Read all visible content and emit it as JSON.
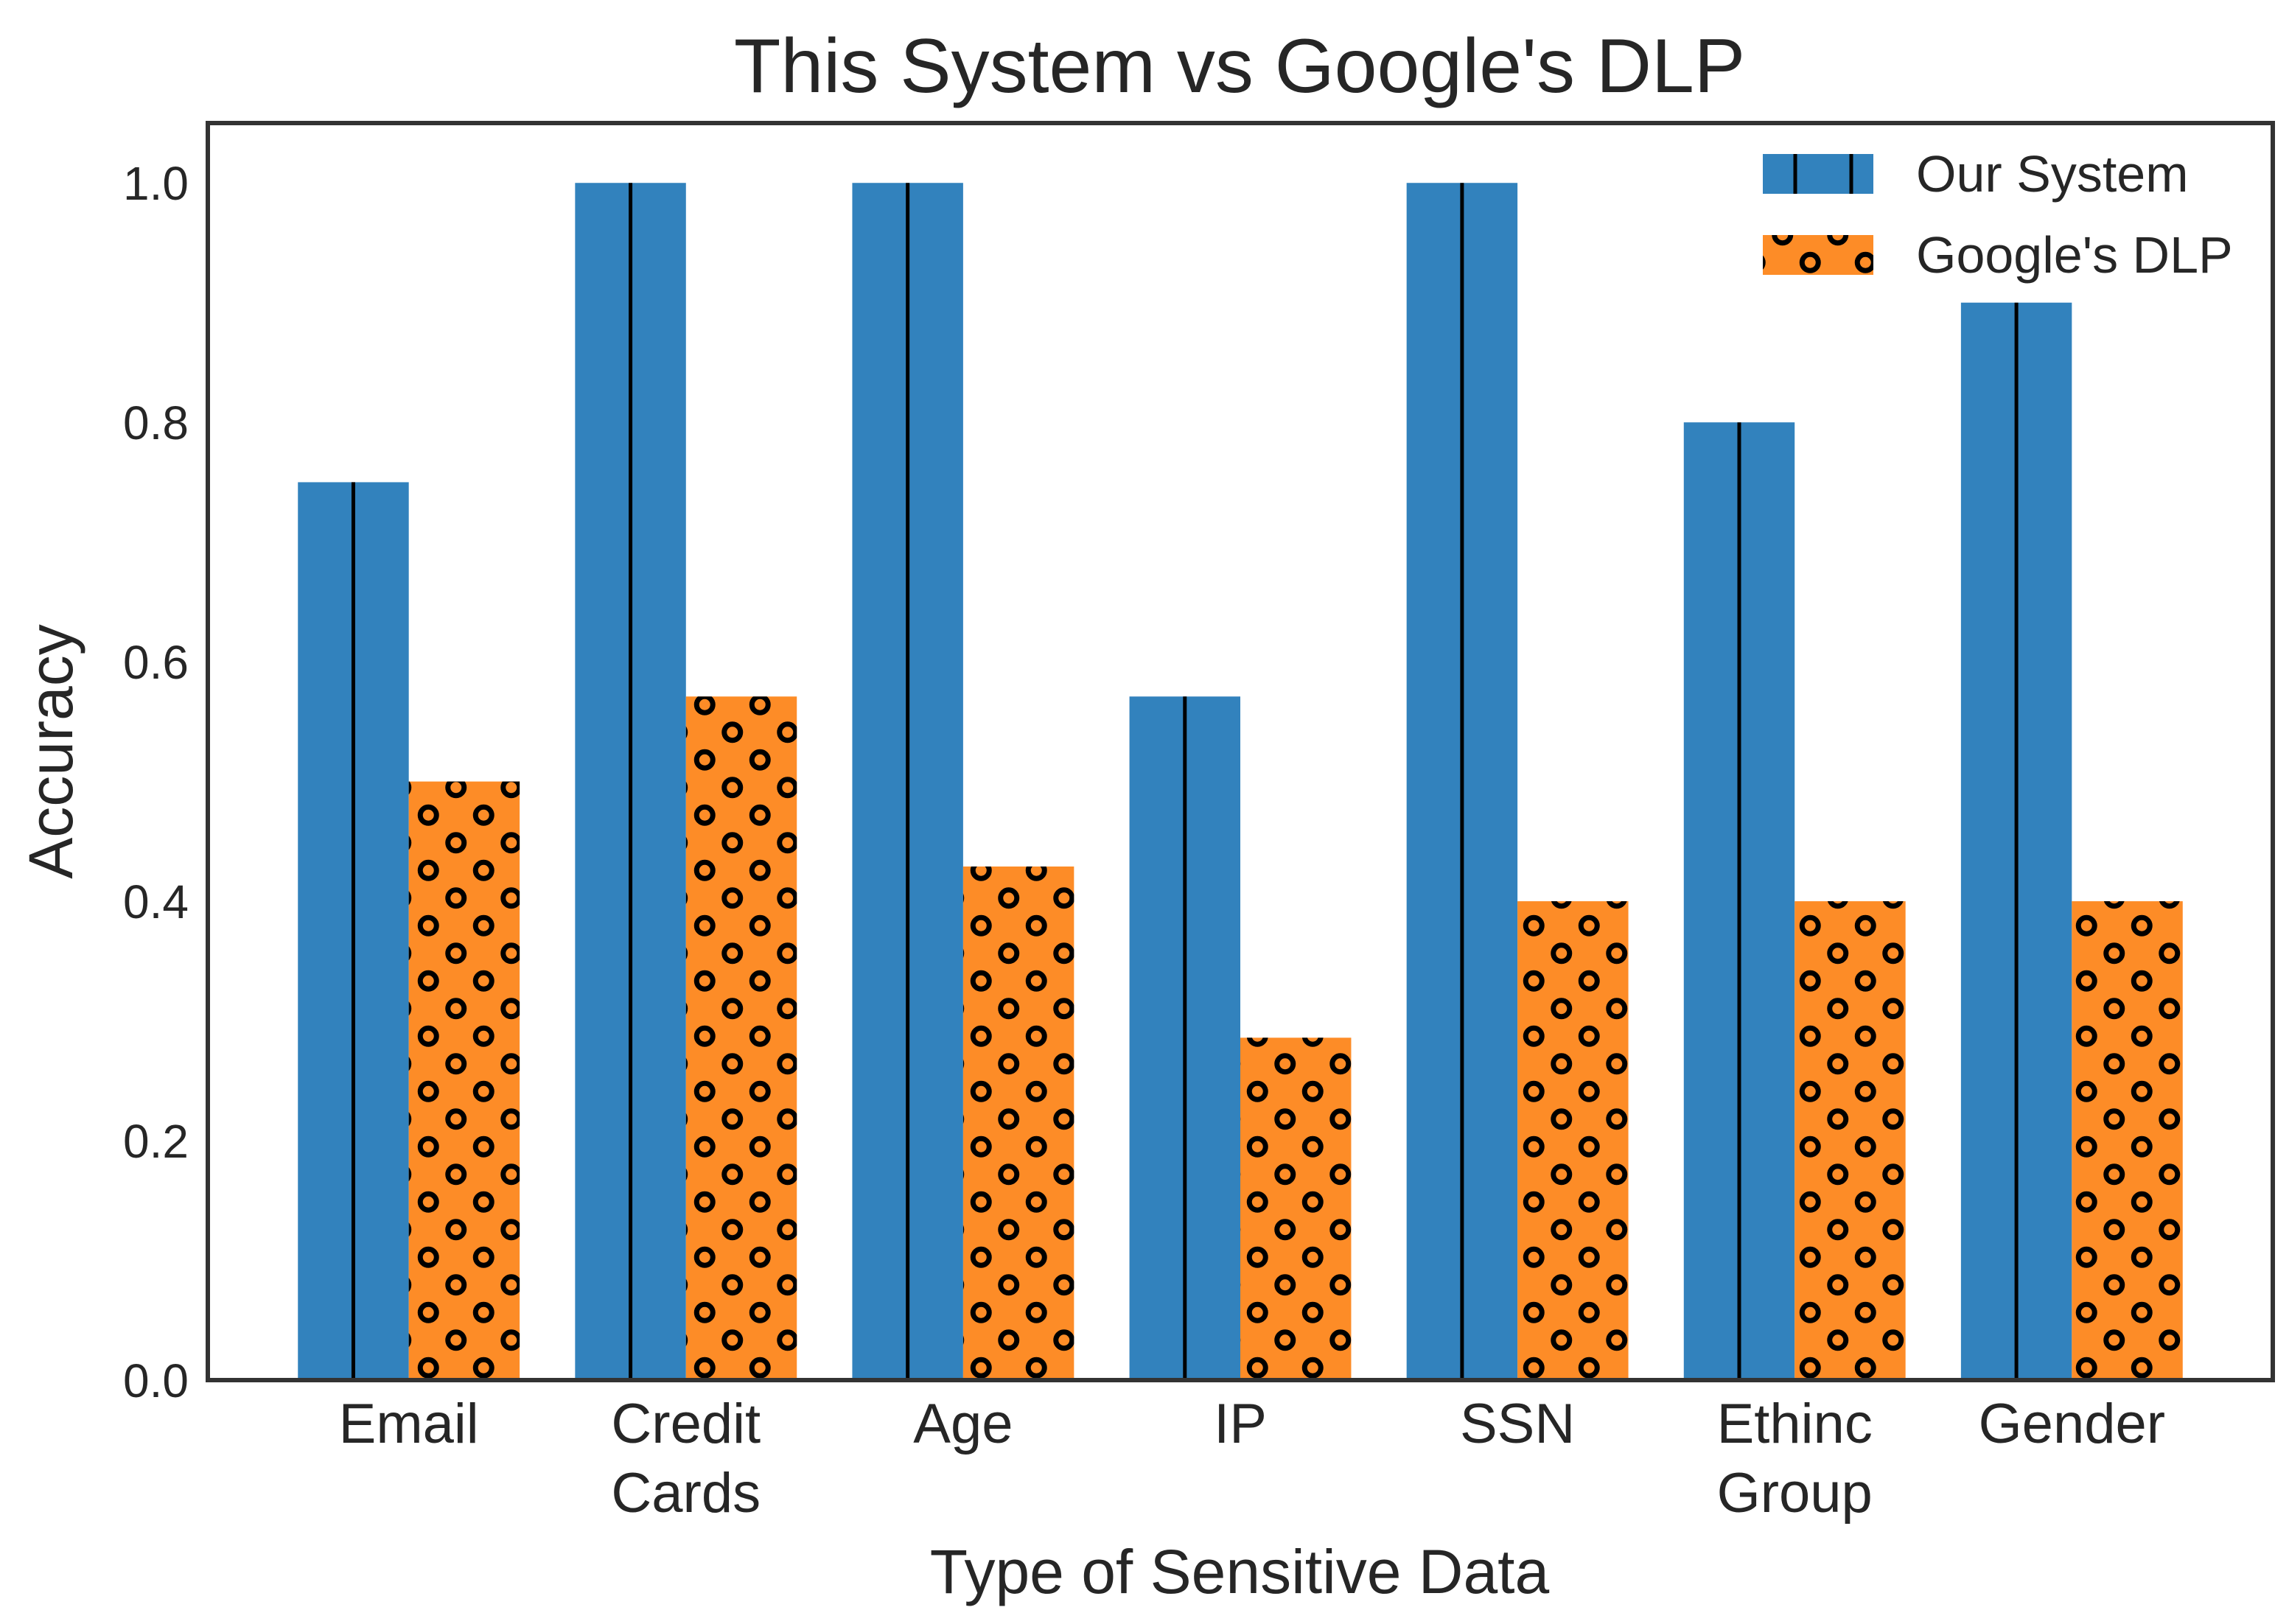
{
  "colors": {
    "our_system": "#3282bd",
    "google_dlp": "#fd8c27",
    "frame": "#333333",
    "hatch": "#000000"
  },
  "chart_data": {
    "type": "bar",
    "title": "This System vs Google's DLP",
    "xlabel": "Type of Sensitive Data",
    "ylabel": "Accuracy",
    "ylim": [
      0,
      1.05
    ],
    "yticks": [
      0.0,
      0.2,
      0.4,
      0.6,
      0.8,
      1.0
    ],
    "ytick_labels": [
      "0.0",
      "0.2",
      "0.4",
      "0.6",
      "0.8",
      "1.0"
    ],
    "categories": [
      [
        "Email"
      ],
      [
        "Credit",
        "Cards"
      ],
      [
        "Age"
      ],
      [
        "IP"
      ],
      [
        "SSN"
      ],
      [
        "Ethinc",
        "Group"
      ],
      [
        "Gender"
      ]
    ],
    "series": [
      {
        "name": "Our System",
        "hatch": "vertical-line",
        "values": [
          0.75,
          1.0,
          1.0,
          0.571,
          1.0,
          0.8,
          0.9
        ]
      },
      {
        "name": "Google's DLP",
        "hatch": "circles",
        "values": [
          0.5,
          0.571,
          0.429,
          0.286,
          0.4,
          0.4,
          0.4
        ]
      }
    ],
    "legend_position": "top-right",
    "grid": false
  }
}
